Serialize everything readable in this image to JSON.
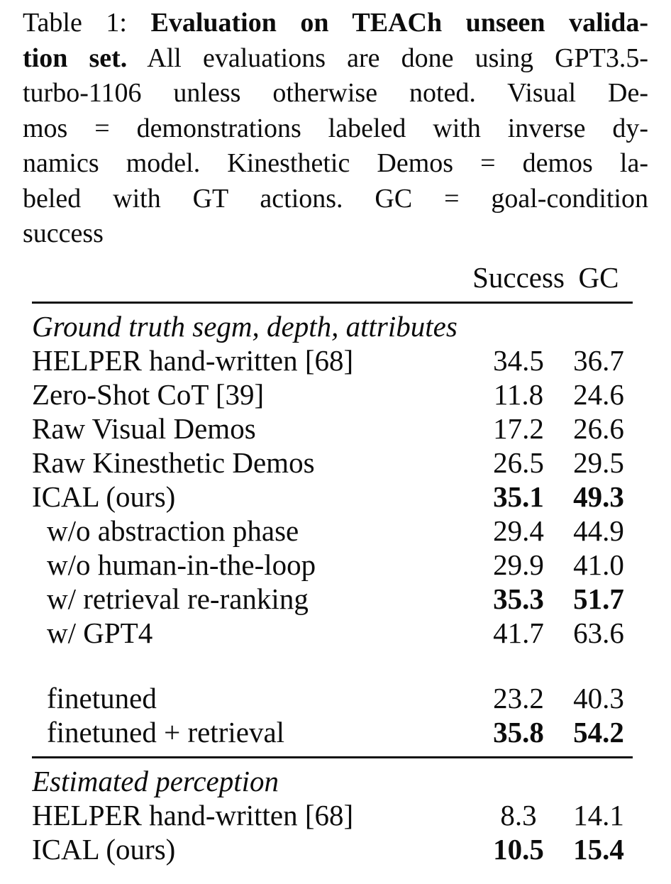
{
  "caption": {
    "lines": [
      {
        "pre": "Table 1: ",
        "bold": "Evaluation on TEACh unseen valida-",
        "post": ""
      },
      {
        "pre": "",
        "bold": "tion set.",
        "post": " All evaluations are done using GPT3.5-"
      },
      {
        "pre": "turbo-1106 unless otherwise noted. Visual De-",
        "bold": "",
        "post": ""
      },
      {
        "pre": "mos = demonstrations labeled with inverse dy-",
        "bold": "",
        "post": ""
      },
      {
        "pre": "namics model. Kinesthetic Demos = demos la-",
        "bold": "",
        "post": ""
      },
      {
        "pre": "beled with GT actions. GC = goal-condition",
        "bold": "",
        "post": ""
      },
      {
        "pre": "success",
        "bold": "",
        "post": ""
      }
    ]
  },
  "table": {
    "header": {
      "success": "Success",
      "gc": "GC"
    },
    "section1": {
      "title": "Ground truth segm, depth, attributes",
      "rows": [
        {
          "label": "HELPER hand-written [68]",
          "success": "34.5",
          "gc": "36.7",
          "indent": false,
          "bold": false
        },
        {
          "label": "Zero-Shot CoT [39]",
          "success": "11.8",
          "gc": "24.6",
          "indent": false,
          "bold": false
        },
        {
          "label": "Raw Visual Demos",
          "success": "17.2",
          "gc": "26.6",
          "indent": false,
          "bold": false
        },
        {
          "label": "Raw Kinesthetic Demos",
          "success": "26.5",
          "gc": "29.5",
          "indent": false,
          "bold": false
        },
        {
          "label": "ICAL (ours)",
          "success": "35.1",
          "gc": "49.3",
          "indent": false,
          "bold": true
        },
        {
          "label": "w/o abstraction phase",
          "success": "29.4",
          "gc": "44.9",
          "indent": true,
          "bold": false
        },
        {
          "label": "w/o human-in-the-loop",
          "success": "29.9",
          "gc": "41.0",
          "indent": true,
          "bold": false
        },
        {
          "label": "w/ retrieval re-ranking",
          "success": "35.3",
          "gc": "51.7",
          "indent": true,
          "bold": true
        },
        {
          "label": "w/ GPT4",
          "success": "41.7",
          "gc": "63.6",
          "indent": true,
          "bold": false
        }
      ]
    },
    "subsection": {
      "rows": [
        {
          "label": "finetuned",
          "success": "23.2",
          "gc": "40.3",
          "indent": true,
          "bold": false
        },
        {
          "label": "finetuned + retrieval",
          "success": "35.8",
          "gc": "54.2",
          "indent": true,
          "bold": true
        }
      ]
    },
    "section2": {
      "title": "Estimated perception",
      "rows": [
        {
          "label": "HELPER hand-written [68]",
          "success": "8.3",
          "gc": "14.1",
          "indent": false,
          "bold": false
        },
        {
          "label": "ICAL (ours)",
          "success": "10.5",
          "gc": "15.4",
          "indent": false,
          "bold": true
        }
      ]
    },
    "colors": {
      "text": "#0c0c0c",
      "rule": "#101010",
      "background": "#ffffff"
    }
  }
}
